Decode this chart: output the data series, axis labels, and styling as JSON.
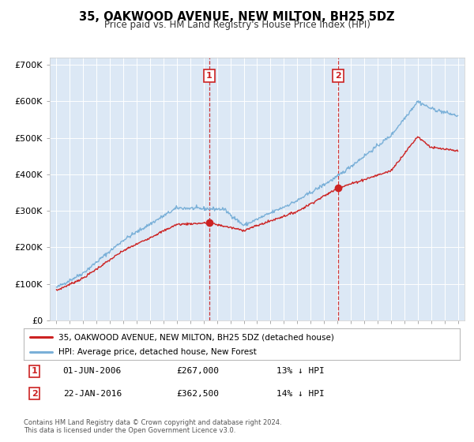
{
  "title": "35, OAKWOOD AVENUE, NEW MILTON, BH25 5DZ",
  "subtitle": "Price paid vs. HM Land Registry's House Price Index (HPI)",
  "ylim": [
    0,
    720000
  ],
  "yticks": [
    0,
    100000,
    200000,
    300000,
    400000,
    500000,
    600000,
    700000
  ],
  "ytick_labels": [
    "£0",
    "£100K",
    "£200K",
    "£300K",
    "£400K",
    "£500K",
    "£600K",
    "£700K"
  ],
  "sale1_year": 2006.42,
  "sale1_price": 267000,
  "sale2_year": 2016.06,
  "sale2_price": 362500,
  "bg_color": "#dce8f5",
  "grid_color": "#ffffff",
  "hpi_color": "#7ab0d8",
  "price_color": "#cc2222",
  "footer_text": "Contains HM Land Registry data © Crown copyright and database right 2024.\nThis data is licensed under the Open Government Licence v3.0.",
  "legend_label1": "35, OAKWOOD AVENUE, NEW MILTON, BH25 5DZ (detached house)",
  "legend_label2": "HPI: Average price, detached house, New Forest",
  "table_row1": [
    "1",
    "01-JUN-2006",
    "£267,000",
    "13% ↓ HPI"
  ],
  "table_row2": [
    "2",
    "22-JAN-2016",
    "£362,500",
    "14% ↓ HPI"
  ]
}
